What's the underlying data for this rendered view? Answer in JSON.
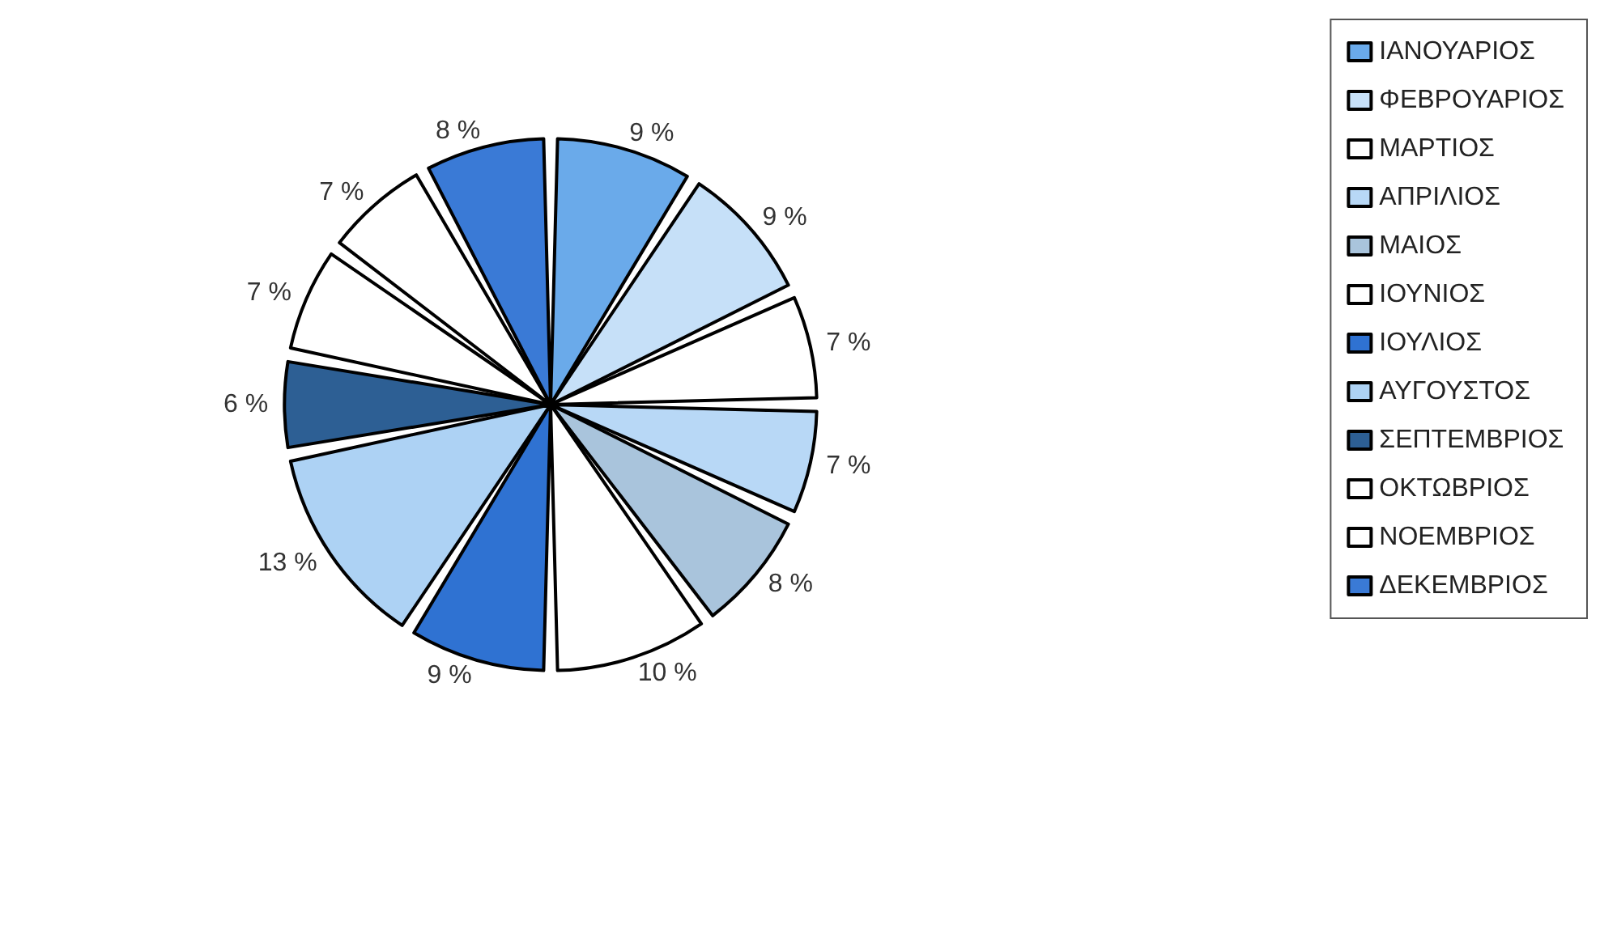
{
  "chart_data": {
    "type": "pie",
    "categories": [
      "ΙΑΝΟΥΑΡΙΟΣ",
      "ΦΕΒΡΟΥΑΡΙΟΣ",
      "ΜΑΡΤΙΟΣ",
      "ΑΠΡΙΛΙΟΣ",
      "ΜΑΙΟΣ",
      "ΙΟΥΝΙΟΣ",
      "ΙΟΥΛΙΟΣ",
      "ΑΥΓΟΥΣΤΟΣ",
      "ΣΕΠΤΕΜΒΡΙΟΣ",
      "ΟΚΤΩΒΡΙΟΣ",
      "ΝΟΕΜΒΡΙΟΣ",
      "ΔΕΚΕΜΒΡΙΟΣ"
    ],
    "values": [
      9,
      9,
      7,
      7,
      8,
      10,
      9,
      13,
      6,
      7,
      7,
      8
    ],
    "value_labels": [
      "9 %",
      "9 %",
      "7 %",
      "7 %",
      "8 %",
      "10 %",
      "9 %",
      "13 %",
      "6 %",
      "7 %",
      "7 %",
      "8 %"
    ],
    "colors": [
      "#6aaaea",
      "#c6e0f8",
      "#ffffff",
      "#b8d8f6",
      "#a9c4dc",
      "#ffffff",
      "#2f72d2",
      "#add2f4",
      "#2d5f94",
      "#ffffff",
      "#ffffff",
      "#3a7ad6"
    ],
    "legend": "top right"
  }
}
